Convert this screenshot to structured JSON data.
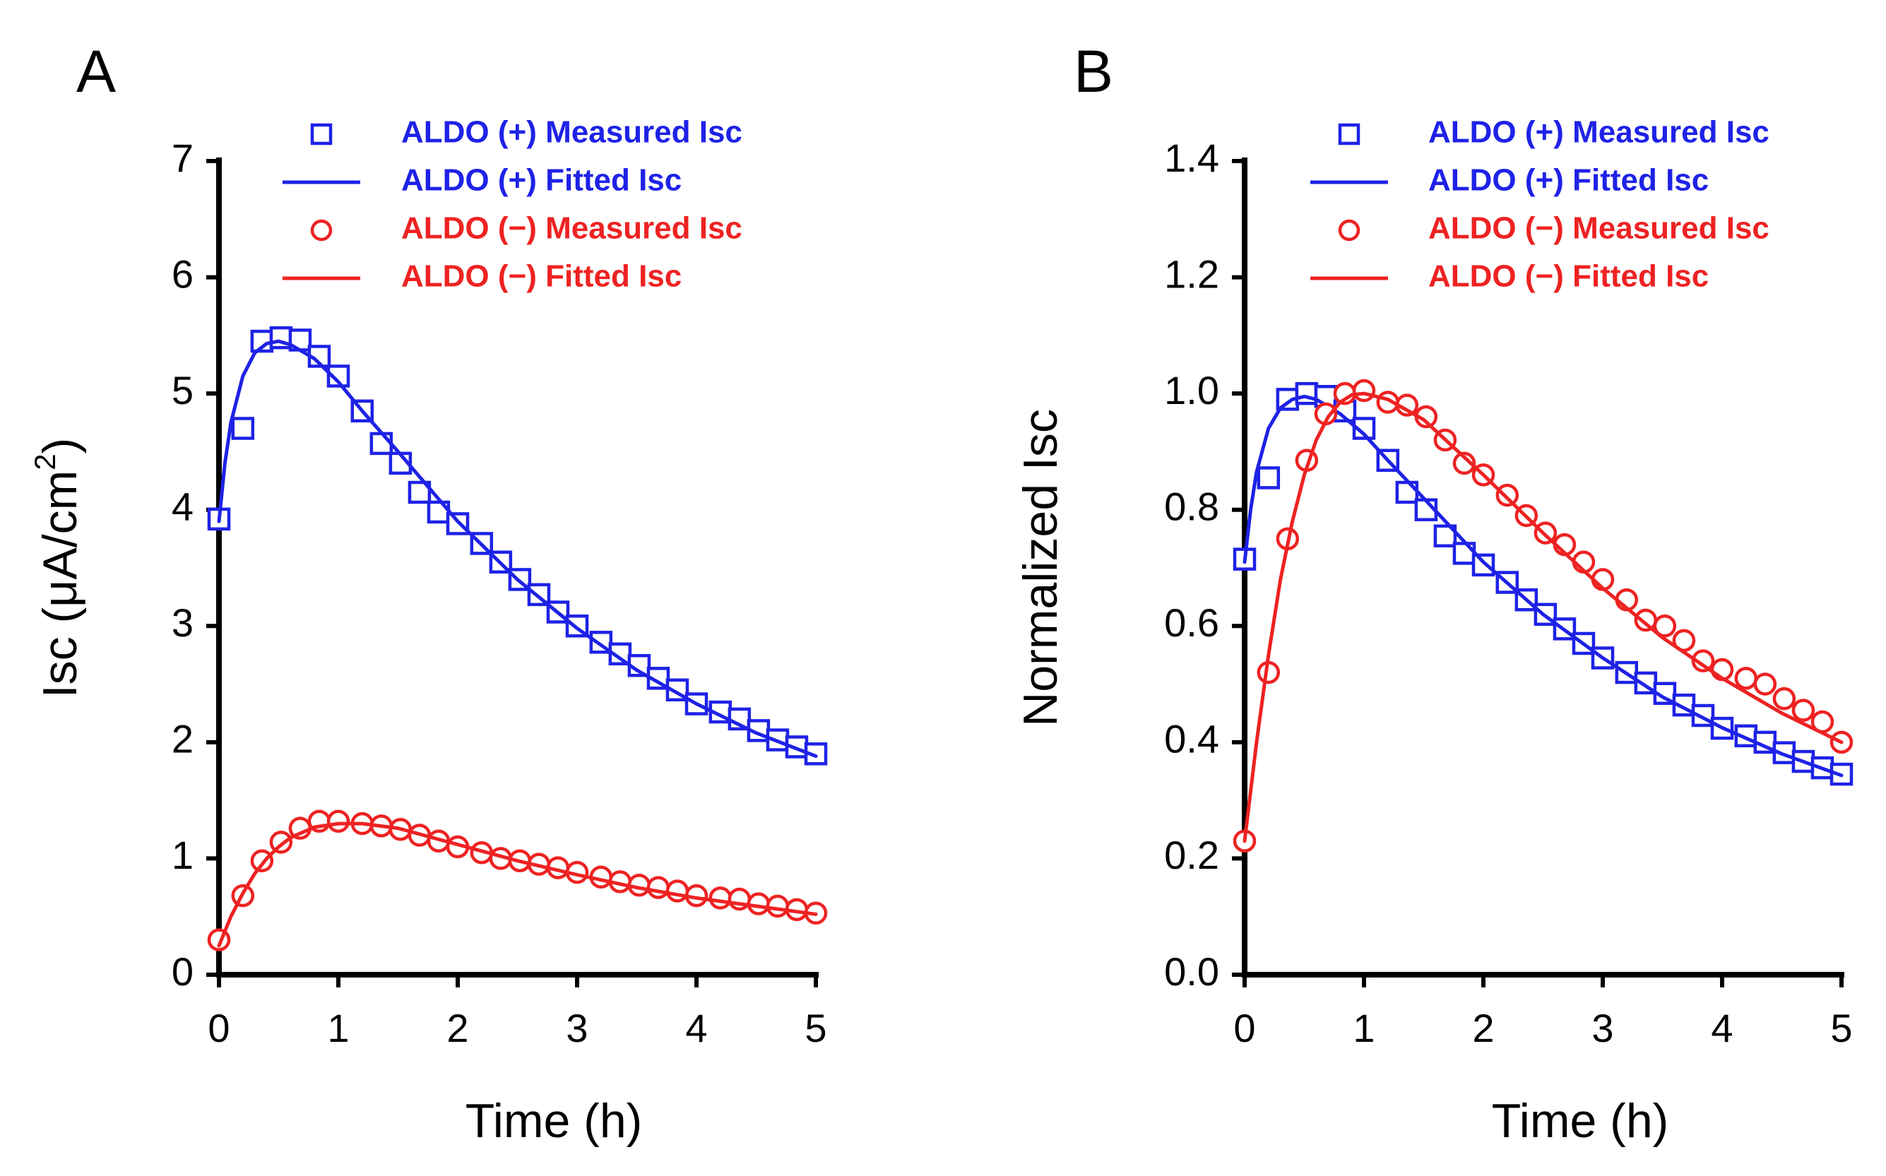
{
  "chart_data": [
    {
      "type": "line",
      "panel_label": "A",
      "title": "",
      "xlabel": "Time (h)",
      "ylabel": "Isc (μA/cm²)",
      "ylabel_parts": {
        "prefix": "Isc (μA/cm",
        "sup": "2",
        "suffix": ")"
      },
      "xlim": [
        0,
        5
      ],
      "ylim": [
        0,
        7
      ],
      "xticks": [
        "0",
        "1",
        "2",
        "3",
        "4",
        "5"
      ],
      "yticks": [
        "0",
        "1",
        "2",
        "3",
        "4",
        "5",
        "6",
        "7"
      ],
      "grid": false,
      "legend_position": "top-right",
      "colors": {
        "plus": "#1e22e6",
        "minus": "#ee2222"
      },
      "series": [
        {
          "name": "ALDO (+) Measured Isc",
          "kind": "markers",
          "marker": "square",
          "color": "#1e22e6",
          "x": [
            0.0,
            0.2,
            0.36,
            0.52,
            0.68,
            0.84,
            1.0,
            1.2,
            1.36,
            1.52,
            1.68,
            1.84,
            2.0,
            2.2,
            2.36,
            2.52,
            2.68,
            2.84,
            3.0,
            3.2,
            3.36,
            3.52,
            3.68,
            3.84,
            4.0,
            4.2,
            4.36,
            4.52,
            4.68,
            4.84,
            5.0
          ],
          "y": [
            3.92,
            4.7,
            5.45,
            5.48,
            5.46,
            5.32,
            5.15,
            4.85,
            4.57,
            4.4,
            4.15,
            3.98,
            3.88,
            3.71,
            3.55,
            3.4,
            3.27,
            3.12,
            3.0,
            2.86,
            2.76,
            2.66,
            2.55,
            2.45,
            2.33,
            2.26,
            2.2,
            2.1,
            2.02,
            1.96,
            1.9
          ]
        },
        {
          "name": "ALDO (+) Fitted Isc",
          "kind": "line",
          "color": "#1e22e6",
          "x": [
            0.0,
            0.05,
            0.1,
            0.2,
            0.3,
            0.4,
            0.5,
            0.6,
            0.8,
            1.0,
            1.2,
            1.5,
            2.0,
            2.5,
            3.0,
            3.5,
            4.0,
            4.5,
            5.0
          ],
          "y": [
            3.9,
            4.4,
            4.75,
            5.15,
            5.35,
            5.43,
            5.45,
            5.42,
            5.3,
            5.1,
            4.85,
            4.5,
            3.9,
            3.4,
            2.98,
            2.62,
            2.33,
            2.08,
            1.88
          ]
        },
        {
          "name": "ALDO (−) Measured Isc",
          "kind": "markers",
          "marker": "circle",
          "color": "#ee2222",
          "x": [
            0.0,
            0.2,
            0.36,
            0.52,
            0.68,
            0.84,
            1.0,
            1.2,
            1.36,
            1.52,
            1.68,
            1.84,
            2.0,
            2.2,
            2.36,
            2.52,
            2.68,
            2.84,
            3.0,
            3.2,
            3.36,
            3.52,
            3.68,
            3.84,
            4.0,
            4.2,
            4.36,
            4.52,
            4.68,
            4.84,
            5.0
          ],
          "y": [
            0.3,
            0.68,
            0.98,
            1.14,
            1.26,
            1.32,
            1.32,
            1.3,
            1.28,
            1.25,
            1.2,
            1.15,
            1.1,
            1.05,
            1.0,
            0.98,
            0.95,
            0.92,
            0.88,
            0.84,
            0.8,
            0.77,
            0.75,
            0.72,
            0.68,
            0.66,
            0.65,
            0.61,
            0.59,
            0.56,
            0.53
          ]
        },
        {
          "name": "ALDO (−) Fitted Isc",
          "kind": "line",
          "color": "#ee2222",
          "x": [
            0.0,
            0.1,
            0.2,
            0.3,
            0.4,
            0.5,
            0.6,
            0.8,
            1.0,
            1.2,
            1.5,
            2.0,
            2.5,
            3.0,
            3.5,
            4.0,
            4.5,
            5.0
          ],
          "y": [
            0.25,
            0.5,
            0.7,
            0.87,
            1.0,
            1.1,
            1.18,
            1.27,
            1.3,
            1.3,
            1.26,
            1.12,
            0.98,
            0.86,
            0.75,
            0.66,
            0.59,
            0.52
          ]
        }
      ]
    },
    {
      "type": "line",
      "panel_label": "B",
      "title": "",
      "xlabel": "Time (h)",
      "ylabel": "Normalized Isc",
      "xlim": [
        0,
        5
      ],
      "ylim": [
        0,
        1.4
      ],
      "xticks": [
        "0",
        "1",
        "2",
        "3",
        "4",
        "5"
      ],
      "yticks": [
        "0.0",
        "0.2",
        "0.4",
        "0.6",
        "0.8",
        "1.0",
        "1.2",
        "1.4"
      ],
      "grid": false,
      "legend_position": "top-right",
      "colors": {
        "plus": "#1e22e6",
        "minus": "#ee2222"
      },
      "series": [
        {
          "name": "ALDO (+) Measured Isc",
          "kind": "markers",
          "marker": "square",
          "color": "#1e22e6",
          "x": [
            0.0,
            0.2,
            0.36,
            0.52,
            0.68,
            0.84,
            1.0,
            1.2,
            1.36,
            1.52,
            1.68,
            1.84,
            2.0,
            2.2,
            2.36,
            2.52,
            2.68,
            2.84,
            3.0,
            3.2,
            3.36,
            3.52,
            3.68,
            3.84,
            4.0,
            4.2,
            4.36,
            4.52,
            4.68,
            4.84,
            5.0
          ],
          "y": [
            0.715,
            0.855,
            0.99,
            1.0,
            0.995,
            0.97,
            0.94,
            0.885,
            0.83,
            0.8,
            0.755,
            0.725,
            0.705,
            0.675,
            0.645,
            0.62,
            0.595,
            0.57,
            0.545,
            0.52,
            0.502,
            0.484,
            0.464,
            0.446,
            0.424,
            0.411,
            0.4,
            0.382,
            0.367,
            0.356,
            0.345
          ]
        },
        {
          "name": "ALDO (+) Fitted Isc",
          "kind": "line",
          "color": "#1e22e6",
          "x": [
            0.0,
            0.05,
            0.1,
            0.2,
            0.3,
            0.4,
            0.5,
            0.6,
            0.8,
            1.0,
            1.2,
            1.5,
            2.0,
            2.5,
            3.0,
            3.5,
            4.0,
            4.5,
            5.0
          ],
          "y": [
            0.71,
            0.8,
            0.865,
            0.94,
            0.975,
            0.99,
            0.995,
            0.99,
            0.965,
            0.93,
            0.885,
            0.82,
            0.71,
            0.62,
            0.545,
            0.478,
            0.425,
            0.38,
            0.343
          ]
        },
        {
          "name": "ALDO (−) Measured Isc",
          "kind": "markers",
          "marker": "circle",
          "color": "#ee2222",
          "x": [
            0.0,
            0.2,
            0.36,
            0.52,
            0.68,
            0.84,
            1.0,
            1.2,
            1.36,
            1.52,
            1.68,
            1.84,
            2.0,
            2.2,
            2.36,
            2.52,
            2.68,
            2.84,
            3.0,
            3.2,
            3.36,
            3.52,
            3.68,
            3.84,
            4.0,
            4.2,
            4.36,
            4.52,
            4.68,
            4.84,
            5.0
          ],
          "y": [
            0.23,
            0.52,
            0.75,
            0.885,
            0.965,
            1.0,
            1.005,
            0.985,
            0.98,
            0.96,
            0.92,
            0.88,
            0.86,
            0.825,
            0.79,
            0.76,
            0.74,
            0.71,
            0.68,
            0.645,
            0.61,
            0.6,
            0.575,
            0.54,
            0.525,
            0.51,
            0.5,
            0.475,
            0.455,
            0.435,
            0.4
          ]
        },
        {
          "name": "ALDO (−) Fitted Isc",
          "kind": "line",
          "color": "#ee2222",
          "x": [
            0.0,
            0.1,
            0.2,
            0.3,
            0.4,
            0.5,
            0.6,
            0.7,
            0.8,
            0.9,
            1.0,
            1.2,
            1.5,
            2.0,
            2.5,
            3.0,
            3.5,
            4.0,
            4.5,
            5.0
          ],
          "y": [
            0.23,
            0.4,
            0.55,
            0.68,
            0.78,
            0.86,
            0.92,
            0.96,
            0.985,
            0.998,
            1.0,
            0.99,
            0.955,
            0.86,
            0.76,
            0.665,
            0.58,
            0.51,
            0.45,
            0.4
          ]
        }
      ]
    }
  ]
}
